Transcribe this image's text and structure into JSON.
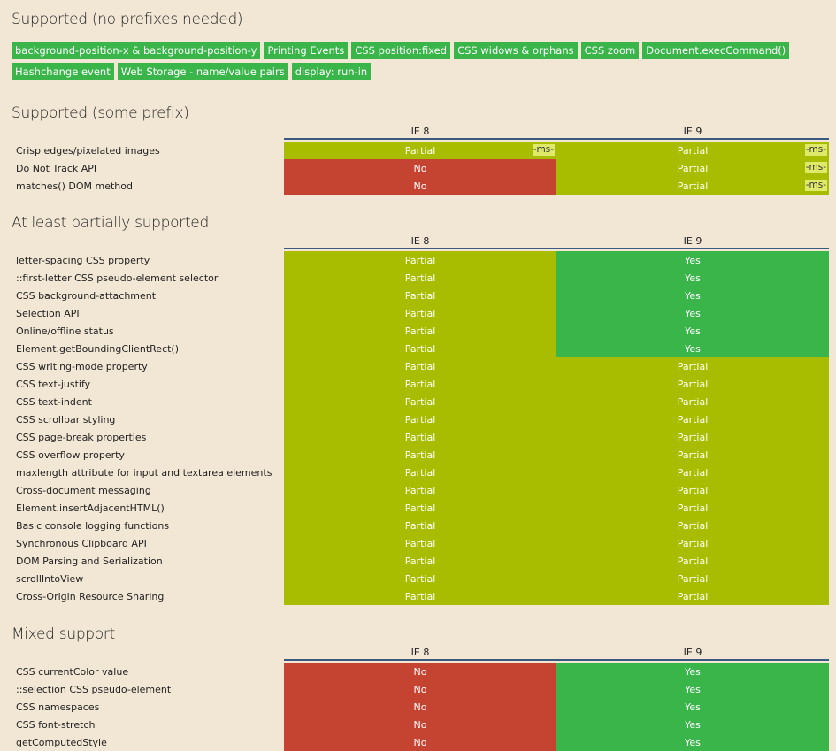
{
  "supported": {
    "title": "Supported (no prefixes needed)",
    "tags": [
      "background-position-x & background-position-y",
      "Printing Events",
      "CSS position:fixed",
      "CSS widows & orphans",
      "CSS zoom",
      "Document.execCommand()",
      "Hashchange event",
      "Web Storage - name/value pairs",
      "display: run-in"
    ]
  },
  "tables": [
    {
      "title": "Supported (some prefix)",
      "columns": [
        "IE 8",
        "IE 9"
      ],
      "rows": [
        {
          "name": "Crisp edges/pixelated images",
          "cells": [
            {
              "v": "Partial",
              "s": "p",
              "prefix": "-ms-"
            },
            {
              "v": "Partial",
              "s": "p",
              "prefix": "-ms-"
            }
          ]
        },
        {
          "name": "Do Not Track API",
          "cells": [
            {
              "v": "No",
              "s": "n"
            },
            {
              "v": "Partial",
              "s": "p",
              "prefix": "-ms-"
            }
          ]
        },
        {
          "name": "matches() DOM method",
          "cells": [
            {
              "v": "No",
              "s": "n"
            },
            {
              "v": "Partial",
              "s": "p",
              "prefix": "-ms-"
            }
          ]
        }
      ]
    },
    {
      "title": "At least partially supported",
      "columns": [
        "IE 8",
        "IE 9"
      ],
      "rows": [
        {
          "name": "letter-spacing CSS property",
          "cells": [
            {
              "v": "Partial",
              "s": "p"
            },
            {
              "v": "Yes",
              "s": "y"
            }
          ]
        },
        {
          "name": "::first-letter CSS pseudo-element selector",
          "cells": [
            {
              "v": "Partial",
              "s": "p"
            },
            {
              "v": "Yes",
              "s": "y"
            }
          ]
        },
        {
          "name": "CSS background-attachment",
          "cells": [
            {
              "v": "Partial",
              "s": "p"
            },
            {
              "v": "Yes",
              "s": "y"
            }
          ]
        },
        {
          "name": "Selection API",
          "cells": [
            {
              "v": "Partial",
              "s": "p"
            },
            {
              "v": "Yes",
              "s": "y"
            }
          ]
        },
        {
          "name": "Online/offline status",
          "cells": [
            {
              "v": "Partial",
              "s": "p"
            },
            {
              "v": "Yes",
              "s": "y"
            }
          ]
        },
        {
          "name": "Element.getBoundingClientRect()",
          "cells": [
            {
              "v": "Partial",
              "s": "p"
            },
            {
              "v": "Yes",
              "s": "y"
            }
          ]
        },
        {
          "name": "CSS writing-mode property",
          "cells": [
            {
              "v": "Partial",
              "s": "p"
            },
            {
              "v": "Partial",
              "s": "p"
            }
          ]
        },
        {
          "name": "CSS text-justify",
          "cells": [
            {
              "v": "Partial",
              "s": "p"
            },
            {
              "v": "Partial",
              "s": "p"
            }
          ]
        },
        {
          "name": "CSS text-indent",
          "cells": [
            {
              "v": "Partial",
              "s": "p"
            },
            {
              "v": "Partial",
              "s": "p"
            }
          ]
        },
        {
          "name": "CSS scrollbar styling",
          "cells": [
            {
              "v": "Partial",
              "s": "p"
            },
            {
              "v": "Partial",
              "s": "p"
            }
          ]
        },
        {
          "name": "CSS page-break properties",
          "cells": [
            {
              "v": "Partial",
              "s": "p"
            },
            {
              "v": "Partial",
              "s": "p"
            }
          ]
        },
        {
          "name": "CSS overflow property",
          "cells": [
            {
              "v": "Partial",
              "s": "p"
            },
            {
              "v": "Partial",
              "s": "p"
            }
          ]
        },
        {
          "name": "maxlength attribute for input and textarea elements",
          "cells": [
            {
              "v": "Partial",
              "s": "p"
            },
            {
              "v": "Partial",
              "s": "p"
            }
          ]
        },
        {
          "name": "Cross-document messaging",
          "cells": [
            {
              "v": "Partial",
              "s": "p"
            },
            {
              "v": "Partial",
              "s": "p"
            }
          ]
        },
        {
          "name": "Element.insertAdjacentHTML()",
          "cells": [
            {
              "v": "Partial",
              "s": "p"
            },
            {
              "v": "Partial",
              "s": "p"
            }
          ]
        },
        {
          "name": "Basic console logging functions",
          "cells": [
            {
              "v": "Partial",
              "s": "p"
            },
            {
              "v": "Partial",
              "s": "p"
            }
          ]
        },
        {
          "name": "Synchronous Clipboard API",
          "cells": [
            {
              "v": "Partial",
              "s": "p"
            },
            {
              "v": "Partial",
              "s": "p"
            }
          ]
        },
        {
          "name": "DOM Parsing and Serialization",
          "cells": [
            {
              "v": "Partial",
              "s": "p"
            },
            {
              "v": "Partial",
              "s": "p"
            }
          ]
        },
        {
          "name": "scrollIntoView",
          "cells": [
            {
              "v": "Partial",
              "s": "p"
            },
            {
              "v": "Partial",
              "s": "p"
            }
          ]
        },
        {
          "name": "Cross-Origin Resource Sharing",
          "cells": [
            {
              "v": "Partial",
              "s": "p"
            },
            {
              "v": "Partial",
              "s": "p"
            }
          ]
        }
      ]
    },
    {
      "title": "Mixed support",
      "columns": [
        "IE 8",
        "IE 9"
      ],
      "rows": [
        {
          "name": "CSS currentColor value",
          "cells": [
            {
              "v": "No",
              "s": "n"
            },
            {
              "v": "Yes",
              "s": "y"
            }
          ]
        },
        {
          "name": "::selection CSS pseudo-element",
          "cells": [
            {
              "v": "No",
              "s": "n"
            },
            {
              "v": "Yes",
              "s": "y"
            }
          ]
        },
        {
          "name": "CSS namespaces",
          "cells": [
            {
              "v": "No",
              "s": "n"
            },
            {
              "v": "Yes",
              "s": "y"
            }
          ]
        },
        {
          "name": "CSS font-stretch",
          "cells": [
            {
              "v": "No",
              "s": "n"
            },
            {
              "v": "Yes",
              "s": "y"
            }
          ]
        },
        {
          "name": "getComputedStyle",
          "cells": [
            {
              "v": "No",
              "s": "n"
            },
            {
              "v": "Yes",
              "s": "y"
            }
          ]
        }
      ]
    }
  ],
  "colors": {
    "yes": "#39b54a",
    "partial": "#a8bd00",
    "no": "#c44331",
    "background": "#f2e7d5"
  }
}
